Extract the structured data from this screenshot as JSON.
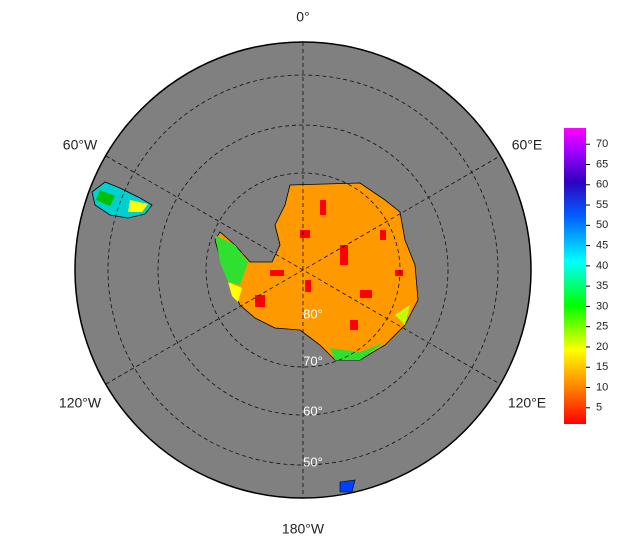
{
  "map": {
    "longitude_labels": {
      "top": "0°",
      "upper_right": "60°E",
      "lower_right": "120°E",
      "bottom": "180°W",
      "lower_left": "120°W",
      "upper_left": "60°W"
    },
    "latitude_labels": [
      "80°",
      "70°",
      "60°",
      "50°"
    ],
    "colorbar": {
      "lim": [
        1,
        74
      ],
      "ticks": [
        5,
        10,
        15,
        20,
        25,
        30,
        35,
        40,
        45,
        50,
        55,
        60,
        65,
        70
      ]
    }
  }
}
